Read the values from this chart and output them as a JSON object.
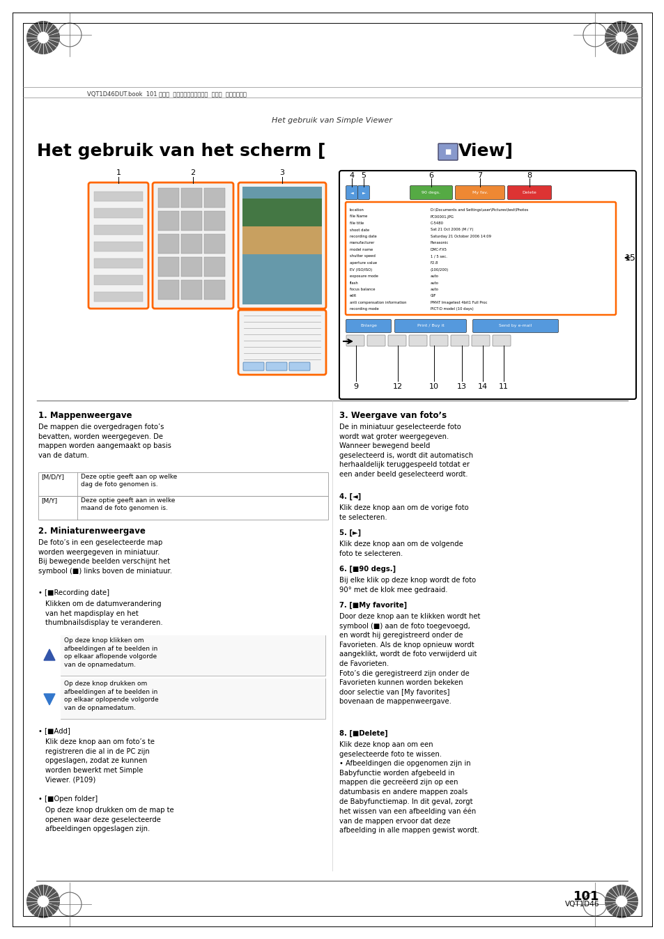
{
  "bg_color": "#ffffff",
  "page_width": 9.54,
  "page_height": 13.48,
  "header_text": "VQT1D46DUT.book  101 ページ  ２００６年１２月７日  木曜日  午後４時１分",
  "subtitle": "Het gebruik van Simple Viewer",
  "title_part1": "Het gebruik van het scherm [",
  "title_part2": "View]",
  "page_number": "101",
  "page_code": "VQT1D46",
  "col1_heading": "1. Mappenweergave",
  "col1_para1": "De mappen die overgedragen foto’s\nbevatten, worden weergegeven. De\nmappen worden aangemaakt op basis\nvan de datum.",
  "col1_table": [
    [
      "[M/D/Y]",
      "Deze optie geeft aan op welke\ndag de foto genomen is."
    ],
    [
      "[M/Y]",
      "Deze optie geeft aan in welke\nmaand de foto genomen is."
    ]
  ],
  "col1_heading2": "2. Miniaturenweergave",
  "col1_para2": "De foto’s in een geselecteerde map\nworden weergegeven in miniatuur.\nBij bewegende beelden verschijnt het\nsymbool (■) links boven de miniatuur.",
  "col1_bullet1_head": "• [■Recording date]",
  "col1_bullet1": "Klikken om de datumverandering\nvan het mapdisplay en het\nthumbnailsdisplay te veranderen.",
  "col1_box1": "Op deze knop klikken om\nafbeeldingen af te beelden in\nop elkaar aflopende volgorde\nvan de opnamedatum.",
  "col1_box2": "Op deze knop drukken om\nafbeeldingen af te beelden in\nop elkaar oplopende volgorde\nvan de opnamedatum.",
  "col1_bullet2_head": "• [■Add]",
  "col1_bullet2": "Klik deze knop aan om foto’s te\nregistreren die al in de PC zijn\nopgeslagen, zodat ze kunnen\nworden bewerkt met Simple\nViewer. (P109)",
  "col1_bullet3_head": "• [■Open folder]",
  "col1_bullet3": "Op deze knop drukken om de map te\nopenen waar deze geselecteerde\nafbeeldingen opgeslagen zijn.",
  "col2_heading": "3. Weergave van foto’s",
  "col2_para1": "De in miniatuur geselecteerde foto\nwordt wat groter weergegeven.\nWanneer bewegend beeld\ngeselecteerd is, wordt dit automatisch\nherhaaldelijk teruggespeeld totdat er\neen ander beeld geselecteerd wordt.",
  "col2_item4_head": "4. [◄]",
  "col2_item4": "Klik deze knop aan om de vorige foto\nte selecteren.",
  "col2_item5_head": "5. [►]",
  "col2_item5": "Klik deze knop aan om de volgende\nfoto te selecteren.",
  "col2_item6_head": "6. [■90 degs.]",
  "col2_item6": "Bij elke klik op deze knop wordt de foto\n90° met de klok mee gedraaid.",
  "col2_item7_head": "7. [■My favorite]",
  "col2_item7": "Door deze knop aan te klikken wordt het\nsymbool (■) aan de foto toegevoegd,\nen wordt hij geregistreerd onder de\nFavorieten. Als de knop opnieuw wordt\naangeklikt, wordt de foto verwijderd uit\nde Favorieten.\nFoto’s die geregistreerd zijn onder de\nFavorieten kunnen worden bekeken\ndoor selectie van [My favorites]\nbovenaan de mappenweergave.",
  "col2_item8_head": "8. [■Delete]",
  "col2_item8": "Klik deze knop aan om een\ngeselecteerde foto te wissen.\n• Afbeeldingen die opgenomen zijn in\nBabyfunctie worden afgebeeld in\nmappen die gecreëerd zijn op een\ndatumbasis en andere mappen zoals\nde Babyfunctiemap. In dit geval, zorgt\nhet wissen van een afbeelding van één\nvan de mappen ervoor dat deze\nafbeelding in alle mappen gewist wordt."
}
